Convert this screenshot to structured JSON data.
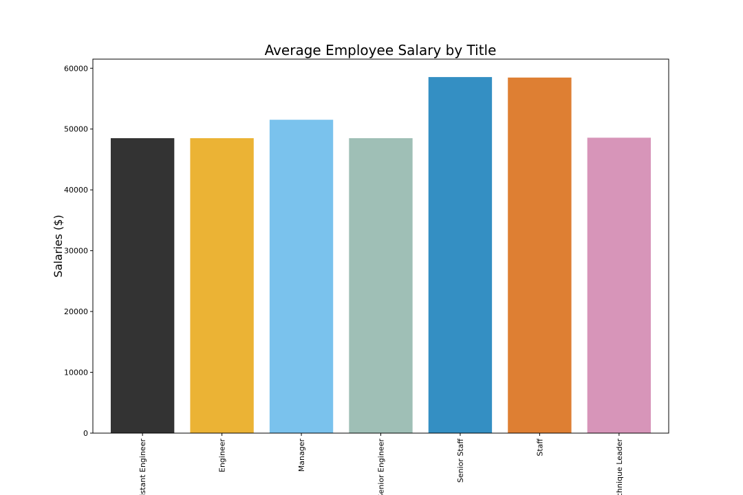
{
  "chart_data": {
    "type": "bar",
    "title": "Average Employee Salary by Title",
    "xlabel": "",
    "ylabel": "Salaries ($)",
    "ylim": [
      0,
      61500
    ],
    "yticks": [
      0,
      10000,
      20000,
      30000,
      40000,
      50000,
      60000
    ],
    "categories": [
      "Assistant Engineer",
      "Engineer",
      "Manager",
      "Senior Engineer",
      "Senior Staff",
      "Staff",
      "Technique Leader"
    ],
    "values": [
      48500,
      48500,
      51530,
      48500,
      58550,
      58470,
      48580
    ],
    "colors": [
      "#333333",
      "#ebb335",
      "#7ac2ed",
      "#9fbfb6",
      "#348fc3",
      "#de7f33",
      "#d795b9"
    ],
    "grid": false,
    "legend": false
  }
}
